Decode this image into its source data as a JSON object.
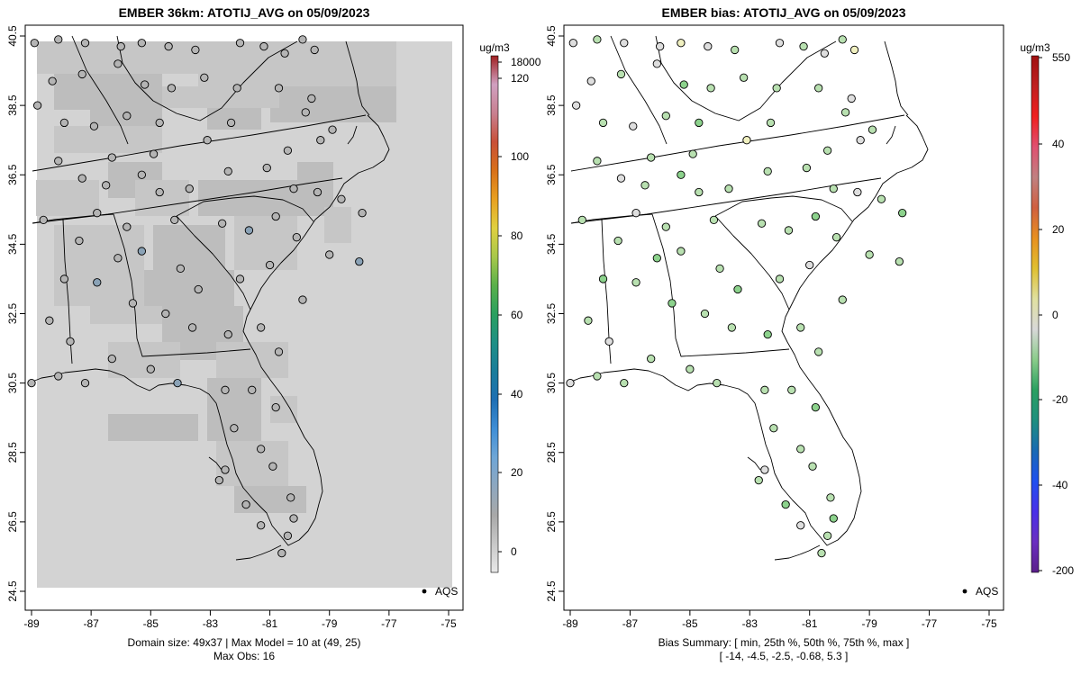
{
  "chart_data": [
    {
      "type": "heatmap",
      "title": "EMBER 36km: ATOTIJ_AVG on 05/09/2023",
      "xlim": [
        -89,
        -75
      ],
      "ylim": [
        24.5,
        40.5
      ],
      "x_ticks": [
        "-89",
        "-87",
        "-85",
        "-83",
        "-81",
        "-79",
        "-77",
        "-75"
      ],
      "y_ticks": [
        "24.5",
        "26.5",
        "28.5",
        "30.5",
        "32.5",
        "34.5",
        "36.5",
        "38.5",
        "40.5"
      ],
      "legend_title": "ug/m3",
      "legend_ticks": [
        "0",
        "20",
        "40",
        "60",
        "80",
        "100",
        "120",
        "18000"
      ],
      "legend_colors": [
        "#e8e8e8",
        "#c8c8c8",
        "#a8a8a8",
        "#8ea7bf",
        "#6fa6d6",
        "#3f8ed6",
        "#1f6fb4",
        "#1a7d9b",
        "#1f8f85",
        "#2aa05f",
        "#5ab04a",
        "#a8c84a",
        "#e0d040",
        "#e8a020",
        "#d87018",
        "#c85038",
        "#c88090",
        "#d0a0c0",
        "#a02020"
      ],
      "base_value_color": "#d3d3d3",
      "model_grid_colors": [
        "#c6c6c6",
        "#bdbdbd"
      ],
      "footer_lines": [
        "Domain size: 49x37 | Max Model = 10 at (49, 25)",
        "Max Obs: 16"
      ],
      "obs_legend": "AQS",
      "site_color_default": "#b4b4b4",
      "site_color_blue": "#8aa2b6"
    },
    {
      "type": "scatter",
      "title": "EMBER bias: ATOTIJ_AVG on 05/09/2023",
      "xlim": [
        -89,
        -75
      ],
      "ylim": [
        24.5,
        40.5
      ],
      "x_ticks": [
        "-89",
        "-87",
        "-85",
        "-83",
        "-81",
        "-79",
        "-77",
        "-75"
      ],
      "y_ticks": [
        "24.5",
        "26.5",
        "28.5",
        "30.5",
        "32.5",
        "34.5",
        "36.5",
        "38.5",
        "40.5"
      ],
      "legend_title": "ug/m3",
      "legend_ticks": [
        "-200",
        "-40",
        "-20",
        "0",
        "20",
        "40",
        "550"
      ],
      "legend_colors": [
        "#5a1f8a",
        "#6a2fc0",
        "#4a30e8",
        "#1f50f0",
        "#1a6ab4",
        "#1f8f7f",
        "#2aa060",
        "#8acc8a",
        "#d8d8d8",
        "#e0e0a0",
        "#e0c030",
        "#e89020",
        "#d06040",
        "#c08080",
        "#e05070",
        "#f02020",
        "#c02020",
        "#a01010"
      ],
      "obs_legend": "AQS",
      "site_color_default": "#b8e0b0",
      "site_color_gray": "#dedede",
      "site_color_green": "#8cd28c",
      "site_color_yellow": "#f0f0c0",
      "footer_lines": [
        "Bias Summary: [ min, 25th %, 50th %, 75th %, max ]",
        "[ -14,   -4.5,   -2.5,   -0.68,   5.3 ]"
      ]
    }
  ]
}
